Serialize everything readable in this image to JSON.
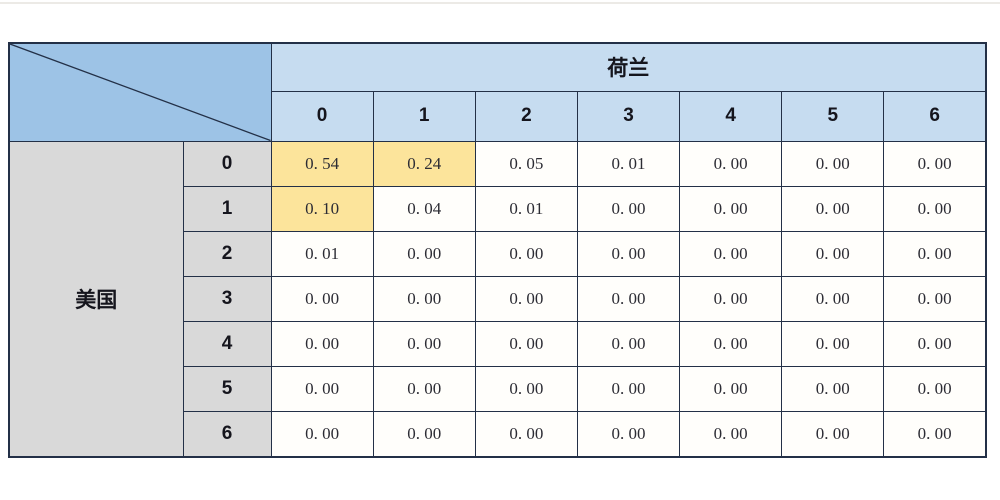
{
  "table": {
    "col_group_label": "荷兰",
    "row_group_label": "美国",
    "col_headers": [
      "0",
      "1",
      "2",
      "3",
      "4",
      "5",
      "6"
    ],
    "row_headers": [
      "0",
      "1",
      "2",
      "3",
      "4",
      "5",
      "6"
    ],
    "cells": [
      [
        "0. 54",
        "0. 24",
        "0. 05",
        "0. 01",
        "0. 00",
        "0. 00",
        "0. 00"
      ],
      [
        "0. 10",
        "0. 04",
        "0. 01",
        "0. 00",
        "0. 00",
        "0. 00",
        "0. 00"
      ],
      [
        "0. 01",
        "0. 00",
        "0. 00",
        "0. 00",
        "0. 00",
        "0. 00",
        "0. 00"
      ],
      [
        "0. 00",
        "0. 00",
        "0. 00",
        "0. 00",
        "0. 00",
        "0. 00",
        "0. 00"
      ],
      [
        "0. 00",
        "0. 00",
        "0. 00",
        "0. 00",
        "0. 00",
        "0. 00",
        "0. 00"
      ],
      [
        "0. 00",
        "0. 00",
        "0. 00",
        "0. 00",
        "0. 00",
        "0. 00",
        "0. 00"
      ],
      [
        "0. 00",
        "0. 00",
        "0. 00",
        "0. 00",
        "0. 00",
        "0. 00",
        "0. 00"
      ]
    ],
    "highlighted_cells": [
      [
        0,
        0
      ],
      [
        0,
        1
      ],
      [
        1,
        0
      ]
    ]
  },
  "colors": {
    "header_blue": "#C6DCF0",
    "corner_blue": "#9DC3E6",
    "side_gray": "#D9D9D9",
    "highlight_yellow": "#FCE49B",
    "border_dark": "#233047"
  },
  "chart_data": {
    "type": "table",
    "title": "",
    "col_variable": "荷兰",
    "row_variable": "美国",
    "col_categories": [
      0,
      1,
      2,
      3,
      4,
      5,
      6
    ],
    "row_categories": [
      0,
      1,
      2,
      3,
      4,
      5,
      6
    ],
    "matrix": [
      [
        0.54,
        0.24,
        0.05,
        0.01,
        0.0,
        0.0,
        0.0
      ],
      [
        0.1,
        0.04,
        0.01,
        0.0,
        0.0,
        0.0,
        0.0
      ],
      [
        0.01,
        0.0,
        0.0,
        0.0,
        0.0,
        0.0,
        0.0
      ],
      [
        0.0,
        0.0,
        0.0,
        0.0,
        0.0,
        0.0,
        0.0
      ],
      [
        0.0,
        0.0,
        0.0,
        0.0,
        0.0,
        0.0,
        0.0
      ],
      [
        0.0,
        0.0,
        0.0,
        0.0,
        0.0,
        0.0,
        0.0
      ],
      [
        0.0,
        0.0,
        0.0,
        0.0,
        0.0,
        0.0,
        0.0
      ]
    ],
    "highlighted_cells": [
      [
        0,
        0
      ],
      [
        0,
        1
      ],
      [
        1,
        0
      ]
    ],
    "legend_position": "none",
    "grid": true
  }
}
